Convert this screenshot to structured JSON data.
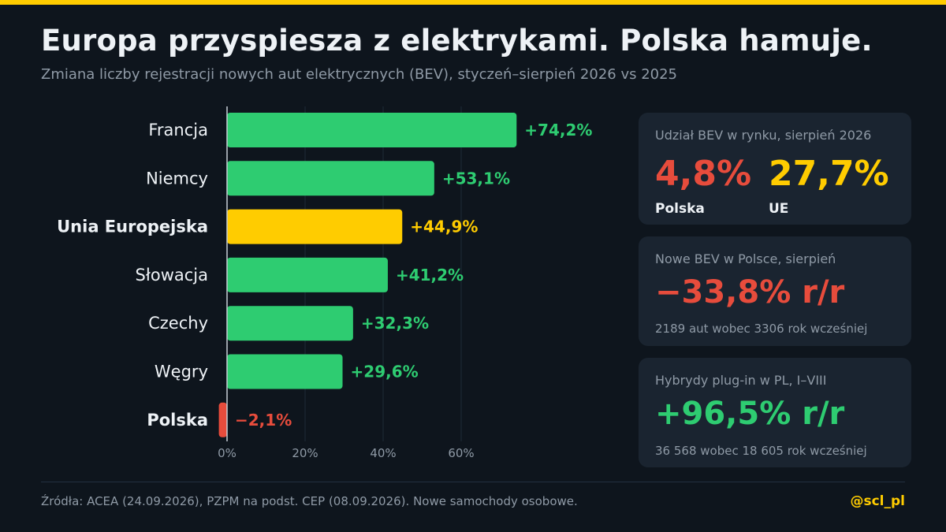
{
  "title": "Europa przyspiesza z elektrykami. Polska hamuje.",
  "subtitle": "Zmiana liczby rejestracji nowych aut elektrycznych (BEV), styczeń–sierpień 2026 vs 2025",
  "colors": {
    "accent": "#ffcc00",
    "positive": "#2ecc71",
    "negative": "#e74c3c",
    "highlight": "#ffcc00",
    "background": "#0e151d",
    "card": "#1a2430"
  },
  "chart_data": {
    "type": "bar",
    "orientation": "horizontal",
    "categories": [
      "Francja",
      "Niemcy",
      "Unia Europejska",
      "Słowacja",
      "Czechy",
      "Węgry",
      "Polska"
    ],
    "values": [
      74.2,
      53.1,
      44.9,
      41.2,
      32.3,
      29.6,
      -2.1
    ],
    "value_labels": [
      "+74,2%",
      "+53,1%",
      "+44,9%",
      "+41,2%",
      "+32,3%",
      "+29,6%",
      "−2,1%"
    ],
    "bold_categories": [
      "Unia Europejska",
      "Polska"
    ],
    "highlight_category": "Unia Europejska",
    "xticks": [
      0,
      20,
      40,
      60
    ],
    "xtick_labels": [
      "0%",
      "20%",
      "40%",
      "60%"
    ],
    "xlim": [
      -2.5,
      75
    ],
    "grid": true,
    "xlabel": "",
    "ylabel": ""
  },
  "cards": [
    {
      "label": "Udział BEV w rynku, sierpień 2026",
      "values": [
        {
          "value": "4,8%",
          "caption": "Polska",
          "color": "#e74c3c"
        },
        {
          "value": "27,7%",
          "caption": "UE",
          "color": "#ffcc00"
        }
      ]
    },
    {
      "label": "Nowe BEV w Polsce, sierpień",
      "value": "−33,8% r/r",
      "color": "#e74c3c",
      "note": "2189 aut wobec 3306 rok wcześniej"
    },
    {
      "label": "Hybrydy plug-in w PL, I–VIII",
      "value": "+96,5% r/r",
      "color": "#2ecc71",
      "note": "36 568 wobec 18 605 rok wcześniej"
    }
  ],
  "footer": {
    "source": "Źródła: ACEA (24.09.2026), PZPM na podst. CEP (08.09.2026). Nowe samochody osobowe.",
    "handle": "@scl_pl"
  }
}
